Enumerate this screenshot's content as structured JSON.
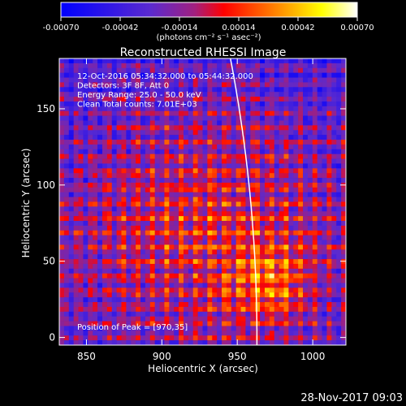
{
  "colorbar": {
    "ticks": [
      "-0.00070",
      "-0.00042",
      "-0.00014",
      "0.00014",
      "0.00042",
      "0.00070"
    ],
    "unit_label": "(photons cm⁻² s⁻¹ asec⁻²)",
    "range": [
      -0.0007,
      0.0007
    ],
    "colors": [
      "#0000ff",
      "#5a2ad0",
      "#a02080",
      "#ff0000",
      "#ff8000",
      "#ffff00",
      "#ffffff"
    ]
  },
  "chart_data": {
    "type": "heatmap",
    "title": "Reconstructed RHESSI Image",
    "xlabel": "Heliocentric X (arcsec)",
    "ylabel": "Heliocentric Y (arcsec)",
    "xlim": [
      832,
      1022
    ],
    "ylim": [
      -5,
      183
    ],
    "x_ticks": [
      850,
      900,
      950,
      1000
    ],
    "y_ticks": [
      0,
      50,
      100,
      150
    ],
    "annotations": [
      "12-Oct-2016 05:34:32.000 to 05:44:32.000",
      "Detectors: 3F 8F, Att 0",
      "Energy Range: 25.0 - 50.0 keV",
      "Clean      Total counts: 7.01E+03"
    ],
    "peak_label": "Position of Peak = [970,35]",
    "peak": [
      970,
      35
    ],
    "limb_color": "#ffffff"
  },
  "footer": {
    "timestamp": "28-Nov-2017 09:03"
  }
}
